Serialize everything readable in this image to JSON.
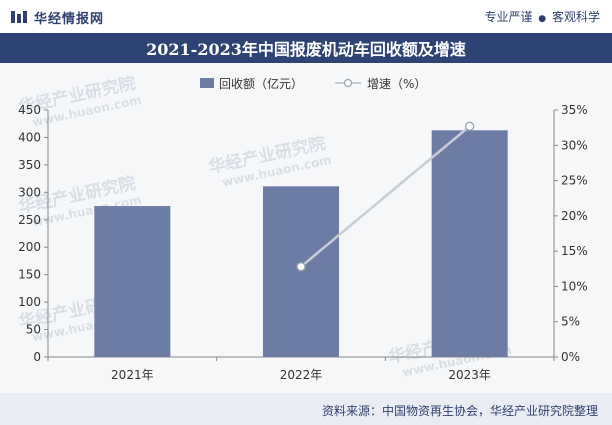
{
  "header": {
    "brand": "华经情报网",
    "tagline_left": "专业严谨",
    "tagline_sep": "●",
    "tagline_right": "客观科学"
  },
  "title": "2021-2023年中国报废机动车回收额及增速",
  "source": "资料来源：中国物资再生协会，华经产业研究院整理",
  "watermark": {
    "cn": "华经产业研究院",
    "url": "www.huaon.com"
  },
  "colors": {
    "bar": "#6c7ca5",
    "line": "#c8ccd6",
    "marker_fill": "#ffffff",
    "title_bg": "#2d4374",
    "brand": "#2f3f6e"
  },
  "chart_data": {
    "type": "bar+line",
    "categories": [
      "2021年",
      "2022年",
      "2023年"
    ],
    "series": [
      {
        "name": "回收额（亿元）",
        "type": "bar",
        "axis": "left",
        "values": [
          275,
          311,
          413
        ]
      },
      {
        "name": "增速（%）",
        "type": "line",
        "axis": "right",
        "values": [
          null,
          12.8,
          32.7
        ]
      }
    ],
    "y_left": {
      "min": 0,
      "max": 450,
      "ticks": [
        "0",
        "50",
        "100",
        "150",
        "200",
        "250",
        "300",
        "350",
        "400",
        "450"
      ]
    },
    "y_right": {
      "min": 0,
      "max": 35,
      "ticks": [
        "0%",
        "5%",
        "10%",
        "15%",
        "20%",
        "25%",
        "30%",
        "35%"
      ]
    },
    "legend_position": "top-center",
    "grid": false
  }
}
